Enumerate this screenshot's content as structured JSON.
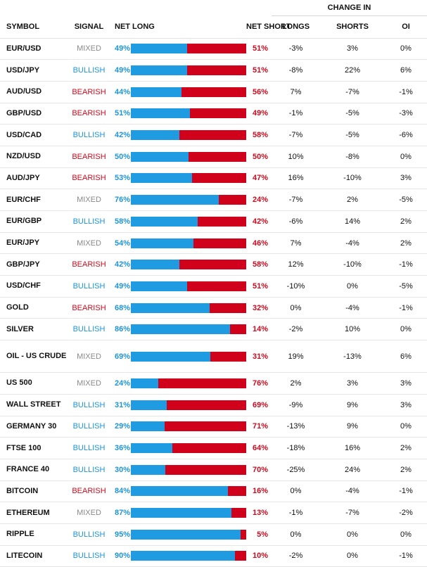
{
  "header": {
    "change_in": "CHANGE IN",
    "symbol": "SYMBOL",
    "signal": "SIGNAL",
    "net_long": "NET LONG",
    "net_short": "NET SHORT",
    "longs": "LONGS",
    "shorts": "SHORTS",
    "oi": "OI"
  },
  "colors": {
    "long": "#1f9be2",
    "short": "#d0021b",
    "mixed": "#8a8a8a"
  },
  "rows": [
    {
      "symbol": "EUR/USD",
      "signal": "MIXED",
      "net_long": "49%",
      "net_short": "51%",
      "longs": "-3%",
      "shorts": "3%",
      "oi": "0%"
    },
    {
      "symbol": "USD/JPY",
      "signal": "BULLISH",
      "net_long": "49%",
      "net_short": "51%",
      "longs": "-8%",
      "shorts": "22%",
      "oi": "6%"
    },
    {
      "symbol": "AUD/USD",
      "signal": "BEARISH",
      "net_long": "44%",
      "net_short": "56%",
      "longs": "7%",
      "shorts": "-7%",
      "oi": "-1%"
    },
    {
      "symbol": "GBP/USD",
      "signal": "BEARISH",
      "net_long": "51%",
      "net_short": "49%",
      "longs": "-1%",
      "shorts": "-5%",
      "oi": "-3%"
    },
    {
      "symbol": "USD/CAD",
      "signal": "BULLISH",
      "net_long": "42%",
      "net_short": "58%",
      "longs": "-7%",
      "shorts": "-5%",
      "oi": "-6%"
    },
    {
      "symbol": "NZD/USD",
      "signal": "BEARISH",
      "net_long": "50%",
      "net_short": "50%",
      "longs": "10%",
      "shorts": "-8%",
      "oi": "0%"
    },
    {
      "symbol": "AUD/JPY",
      "signal": "BEARISH",
      "net_long": "53%",
      "net_short": "47%",
      "longs": "16%",
      "shorts": "-10%",
      "oi": "3%"
    },
    {
      "symbol": "EUR/CHF",
      "signal": "MIXED",
      "net_long": "76%",
      "net_short": "24%",
      "longs": "-7%",
      "shorts": "2%",
      "oi": "-5%"
    },
    {
      "symbol": "EUR/GBP",
      "signal": "BULLISH",
      "net_long": "58%",
      "net_short": "42%",
      "longs": "-6%",
      "shorts": "14%",
      "oi": "2%"
    },
    {
      "symbol": "EUR/JPY",
      "signal": "MIXED",
      "net_long": "54%",
      "net_short": "46%",
      "longs": "7%",
      "shorts": "-4%",
      "oi": "2%"
    },
    {
      "symbol": "GBP/JPY",
      "signal": "BEARISH",
      "net_long": "42%",
      "net_short": "58%",
      "longs": "12%",
      "shorts": "-10%",
      "oi": "-1%"
    },
    {
      "symbol": "USD/CHF",
      "signal": "BULLISH",
      "net_long": "49%",
      "net_short": "51%",
      "longs": "-10%",
      "shorts": "0%",
      "oi": "-5%"
    },
    {
      "symbol": "GOLD",
      "signal": "BEARISH",
      "net_long": "68%",
      "net_short": "32%",
      "longs": "0%",
      "shorts": "-4%",
      "oi": "-1%"
    },
    {
      "symbol": "SILVER",
      "signal": "BULLISH",
      "net_long": "86%",
      "net_short": "14%",
      "longs": "-2%",
      "shorts": "10%",
      "oi": "0%"
    },
    {
      "symbol": "OIL - US CRUDE",
      "signal": "MIXED",
      "net_long": "69%",
      "net_short": "31%",
      "longs": "19%",
      "shorts": "-13%",
      "oi": "6%"
    },
    {
      "symbol": "US 500",
      "signal": "MIXED",
      "net_long": "24%",
      "net_short": "76%",
      "longs": "2%",
      "shorts": "3%",
      "oi": "3%"
    },
    {
      "symbol": "WALL STREET",
      "signal": "BULLISH",
      "net_long": "31%",
      "net_short": "69%",
      "longs": "-9%",
      "shorts": "9%",
      "oi": "3%"
    },
    {
      "symbol": "GERMANY 30",
      "signal": "BULLISH",
      "net_long": "29%",
      "net_short": "71%",
      "longs": "-13%",
      "shorts": "9%",
      "oi": "0%"
    },
    {
      "symbol": "FTSE 100",
      "signal": "BULLISH",
      "net_long": "36%",
      "net_short": "64%",
      "longs": "-18%",
      "shorts": "16%",
      "oi": "2%"
    },
    {
      "symbol": "FRANCE 40",
      "signal": "BULLISH",
      "net_long": "30%",
      "net_short": "70%",
      "longs": "-25%",
      "shorts": "24%",
      "oi": "2%"
    },
    {
      "symbol": "BITCOIN",
      "signal": "BEARISH",
      "net_long": "84%",
      "net_short": "16%",
      "longs": "0%",
      "shorts": "-4%",
      "oi": "-1%"
    },
    {
      "symbol": "ETHEREUM",
      "signal": "MIXED",
      "net_long": "87%",
      "net_short": "13%",
      "longs": "-1%",
      "shorts": "-7%",
      "oi": "-2%"
    },
    {
      "symbol": "RIPPLE",
      "signal": "BULLISH",
      "net_long": "95%",
      "net_short": "5%",
      "longs": "0%",
      "shorts": "0%",
      "oi": "0%"
    },
    {
      "symbol": "LITECOIN",
      "signal": "BULLISH",
      "net_long": "90%",
      "net_short": "10%",
      "longs": "-2%",
      "shorts": "0%",
      "oi": "-1%"
    }
  ]
}
